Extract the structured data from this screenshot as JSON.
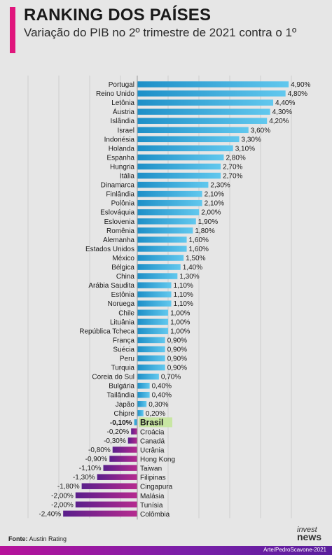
{
  "header": {
    "title": "RANKING DOS PAÍSES",
    "subtitle": "Variação do PIB no 2º trimestre de 2021 contra o 1º"
  },
  "footer": {
    "source_label": "Fonte:",
    "source_value": "Austin Rating",
    "credit": "Arte/PedroScavone-2021",
    "logo_top": "invest",
    "logo_bottom": "news"
  },
  "colors": {
    "positive": "#3aa7d8",
    "negative": "#8a1f8f",
    "highlight_label_bg": "#c8e6a3",
    "accent": "#e0157c"
  },
  "chart_data": {
    "type": "bar",
    "orientation": "horizontal",
    "title": "RANKING DOS PAÍSES",
    "subtitle": "Variação do PIB no 2º trimestre de 2021 contra o 1º",
    "highlight": "Brasil",
    "grid": true,
    "categories": [
      "Portugal",
      "Reino Unido",
      "Letônia",
      "Áustria",
      "Islândia",
      "Israel",
      "Indonésia",
      "Holanda",
      "Espanha",
      "Hungria",
      "Itália",
      "Dinamarca",
      "Finlândia",
      "Polônia",
      "Eslováquia",
      "Eslovenia",
      "Romênia",
      "Alemanha",
      "Estados Unidos",
      "México",
      "Bélgica",
      "China",
      "Arábia Saudita",
      "Estônia",
      "Noruega",
      "Chile",
      "Lituânia",
      "República Tcheca",
      "França",
      "Suécia",
      "Peru",
      "Turquia",
      "Coreia do Sul",
      "Bulgária",
      "Tailândia",
      "Japão",
      "Chipre",
      "Brasil",
      "Croácia",
      "Canadá",
      "Ucrânia",
      "Hong Kong",
      "Taiwan",
      "Filipinas",
      "Cingapura",
      "Malásia",
      "Tunísia",
      "Colômbia"
    ],
    "values": [
      4.9,
      4.8,
      4.4,
      4.3,
      4.2,
      3.6,
      3.3,
      3.1,
      2.8,
      2.7,
      2.7,
      2.3,
      2.1,
      2.1,
      2.0,
      1.9,
      1.8,
      1.6,
      1.6,
      1.5,
      1.4,
      1.3,
      1.1,
      1.1,
      1.1,
      1.0,
      1.0,
      1.0,
      0.9,
      0.9,
      0.9,
      0.9,
      0.7,
      0.4,
      0.4,
      0.3,
      0.2,
      -0.1,
      -0.2,
      -0.3,
      -0.8,
      -0.9,
      -1.1,
      -1.3,
      -1.8,
      -2.0,
      -2.0,
      -2.4
    ],
    "value_labels": [
      "4,90%",
      "4,80%",
      "4,40%",
      "4,30%",
      "4,20%",
      "3,60%",
      "3,30%",
      "3,10%",
      "2,80%",
      "2,70%",
      "2,70%",
      "2,30%",
      "2,10%",
      "2,10%",
      "2,00%",
      "1,90%",
      "1,80%",
      "1,60%",
      "1,60%",
      "1,50%",
      "1,40%",
      "1,30%",
      "1,10%",
      "1,10%",
      "1,10%",
      "1,00%",
      "1,00%",
      "1,00%",
      "0,90%",
      "0,90%",
      "0,90%",
      "0,90%",
      "0,70%",
      "0,40%",
      "0,40%",
      "0,30%",
      "0,20%",
      "-0,10%",
      "-0,20%",
      "-0,30%",
      "-0,80%",
      "-0,90%",
      "-1,10%",
      "-1,30%",
      "-1,80%",
      "-2,00%",
      "-2,00%",
      "-2,40%"
    ],
    "xlim": [
      -2.4,
      4.9
    ]
  }
}
